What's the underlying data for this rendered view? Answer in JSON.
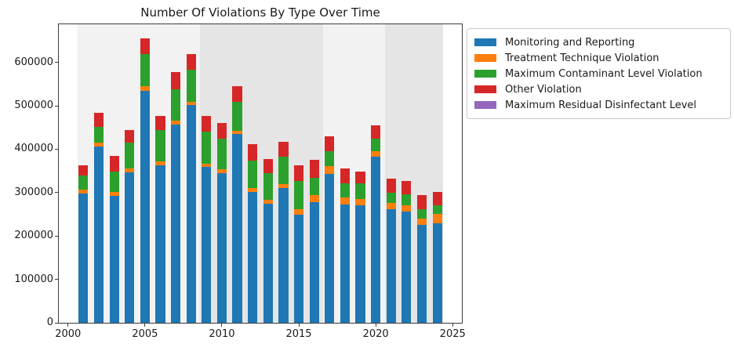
{
  "title": "Number Of Violations By Type Over Time",
  "axis": {
    "y_tick_labels": [
      "0",
      "100000",
      "200000",
      "300000",
      "400000",
      "500000",
      "600000"
    ],
    "x_tick_labels": [
      "2000",
      "2005",
      "2010",
      "2015",
      "2020",
      "2025"
    ]
  },
  "colors": {
    "monitoring_blue": "#1f77b4",
    "treatment_orange": "#ff7f0e",
    "mcl_green": "#2ca02c",
    "other_red": "#d62728",
    "mrdl_purple": "#9467bd",
    "band_light": "#f2f2f2",
    "band_dark": "#e5e5e5",
    "spine": "#3c3c3c",
    "text": "#1a1a1a"
  },
  "chart_data": {
    "type": "bar",
    "stacked": true,
    "title": "Number Of Violations By Type Over Time",
    "xlabel": "",
    "ylabel": "",
    "x": [
      2001,
      2002,
      2003,
      2004,
      2005,
      2006,
      2007,
      2008,
      2009,
      2010,
      2011,
      2012,
      2013,
      2014,
      2015,
      2016,
      2017,
      2018,
      2019,
      2020,
      2021,
      2022,
      2023,
      2024
    ],
    "series": [
      {
        "name": "Monitoring and Reporting",
        "color": "#1f77b4",
        "values": [
          297000,
          407000,
          292000,
          347000,
          534000,
          362000,
          457000,
          502000,
          359000,
          344000,
          435000,
          302000,
          275000,
          310000,
          250000,
          278000,
          343000,
          272000,
          271000,
          382000,
          261000,
          257000,
          226000,
          230000
        ]
      },
      {
        "name": "Treatment Technique Violation",
        "color": "#ff7f0e",
        "values": [
          9000,
          8000,
          9000,
          8000,
          11000,
          9000,
          9000,
          7000,
          8000,
          10000,
          8000,
          9000,
          9000,
          10000,
          11000,
          16000,
          18000,
          17000,
          15000,
          13000,
          16000,
          14000,
          14000,
          21000
        ]
      },
      {
        "name": "Maximum Contaminant Level Violation",
        "color": "#2ca02c",
        "values": [
          34000,
          36000,
          48000,
          60000,
          75000,
          73000,
          72000,
          74000,
          74000,
          71000,
          66000,
          62000,
          61000,
          62000,
          65000,
          40000,
          34000,
          33000,
          35000,
          29000,
          23000,
          25000,
          22000,
          19000
        ]
      },
      {
        "name": "Other Violation",
        "color": "#d62728",
        "values": [
          23000,
          33000,
          36000,
          30000,
          35000,
          32000,
          39000,
          36000,
          36000,
          35000,
          37000,
          39000,
          33000,
          35000,
          36000,
          41000,
          35000,
          33000,
          28000,
          31000,
          33000,
          30000,
          32000,
          32000
        ]
      },
      {
        "name": "Maximum Residual Disinfectant Level",
        "color": "#9467bd",
        "values": [
          0,
          0,
          0,
          0,
          0,
          0,
          0,
          0,
          0,
          0,
          0,
          0,
          0,
          0,
          0,
          0,
          0,
          0,
          0,
          0,
          0,
          0,
          0,
          0
        ]
      }
    ],
    "totals": [
      363000,
      484000,
      385000,
      445000,
      655000,
      476000,
      577000,
      619000,
      477000,
      460000,
      546000,
      412000,
      378000,
      417000,
      362000,
      375000,
      430000,
      355000,
      349000,
      455000,
      333000,
      326000,
      294000,
      302000
    ],
    "xticks": [
      2000,
      2005,
      2010,
      2015,
      2020,
      2025
    ],
    "yticks": [
      0,
      100000,
      200000,
      300000,
      400000,
      500000,
      600000
    ],
    "xlim": [
      1999.4,
      2025.6
    ],
    "ylim": [
      0,
      687750
    ],
    "bar_width": 0.62,
    "grid": false,
    "legend_position": "outside-right",
    "background_bands": [
      {
        "from": 2000.6,
        "to": 2008.6,
        "color": "#f2f2f2"
      },
      {
        "from": 2008.6,
        "to": 2016.6,
        "color": "#e5e5e5"
      },
      {
        "from": 2016.6,
        "to": 2020.6,
        "color": "#f2f2f2"
      },
      {
        "from": 2020.6,
        "to": 2024.4,
        "color": "#e5e5e5"
      }
    ]
  }
}
